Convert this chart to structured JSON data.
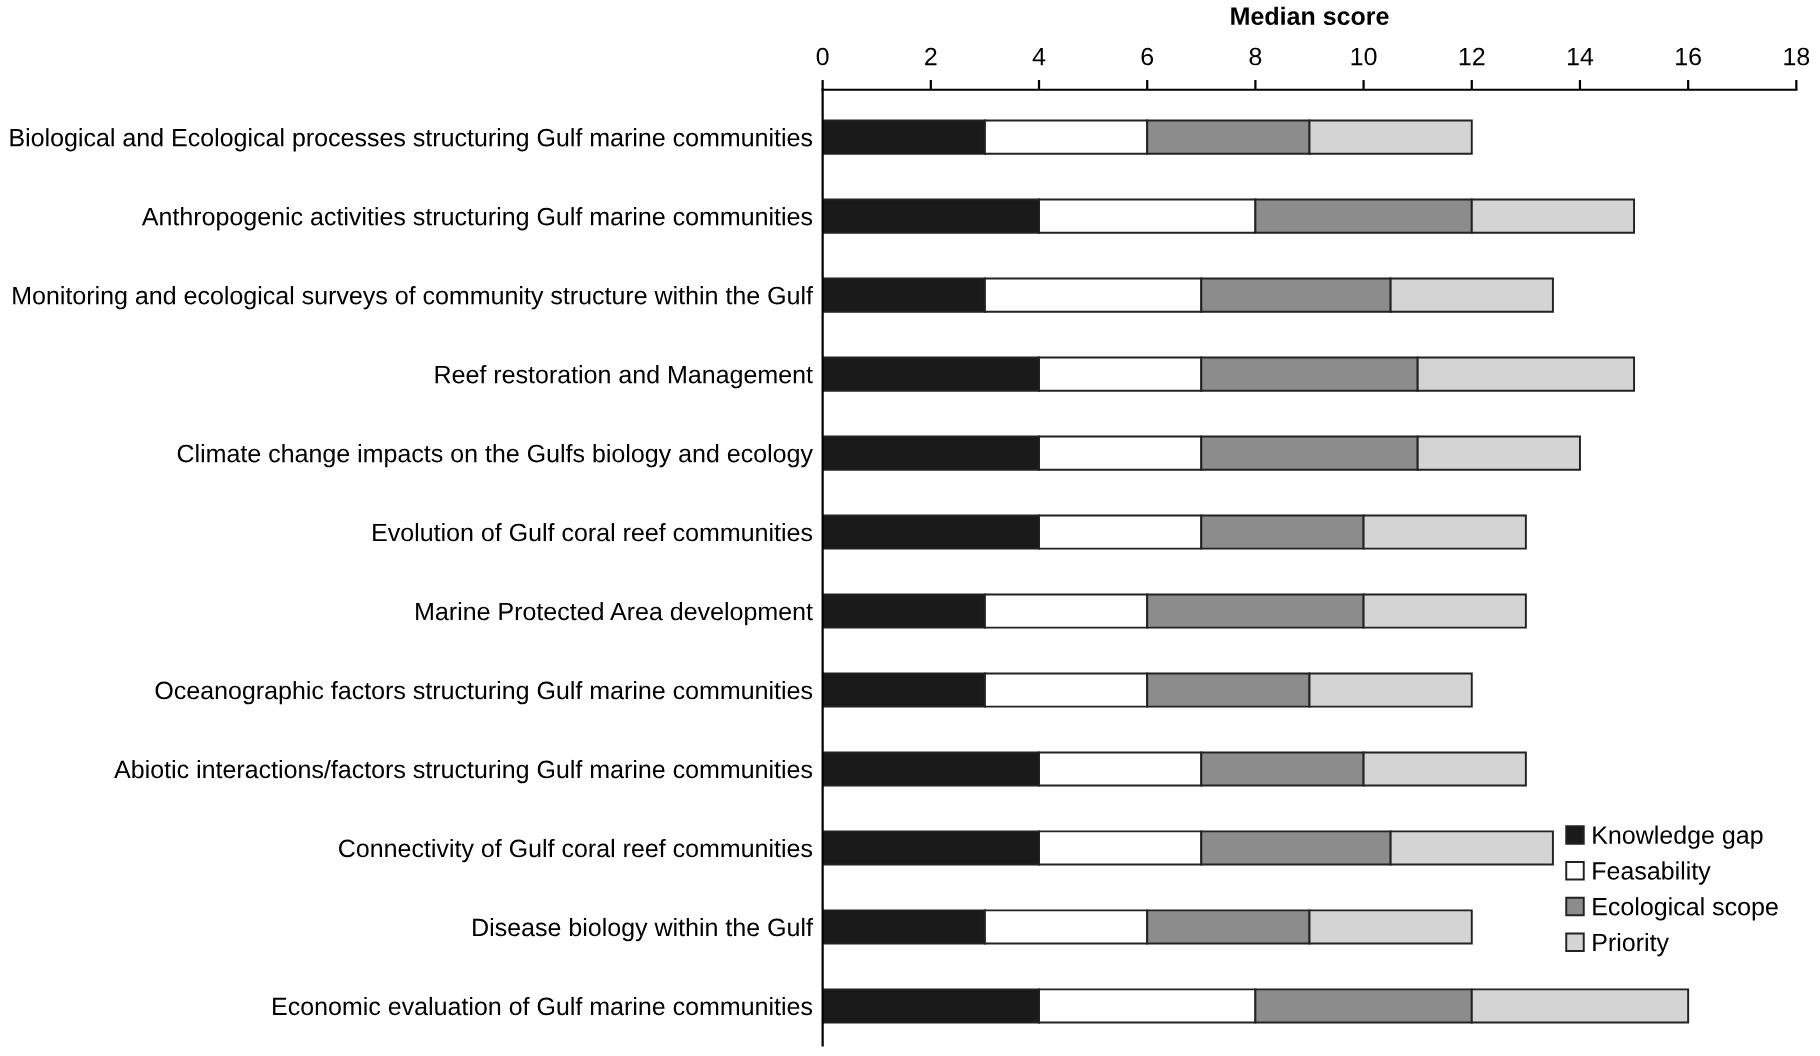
{
  "chart_data": {
    "type": "bar",
    "orientation": "horizontal",
    "stacked": true,
    "xlabel": "Median score",
    "categories": [
      "Biological and Ecological processes structuring Gulf marine communities",
      "Anthropogenic activities structuring Gulf marine communities",
      "Monitoring and ecological surveys of community structure within the Gulf",
      "Reef restoration and Management",
      "Climate change impacts on the Gulfs biology and ecology",
      "Evolution of Gulf coral reef communities",
      "Marine Protected Area development",
      "Oceanographic factors structuring Gulf marine communities",
      "Abiotic interactions/factors structuring Gulf marine communities",
      "Connectivity of Gulf coral reef communities",
      "Disease biology within the Gulf",
      "Economic evaluation of Gulf marine communities"
    ],
    "series": [
      {
        "name": "Knowledge gap",
        "color": "#1a1a1a",
        "values": [
          3,
          4,
          3,
          4,
          4,
          4,
          3,
          3,
          4,
          4,
          3,
          4
        ]
      },
      {
        "name": "Feasability",
        "color": "#ffffff",
        "values": [
          3,
          4,
          4,
          3,
          3,
          3,
          3,
          3,
          3,
          3,
          3,
          4
        ]
      },
      {
        "name": "Ecological scope",
        "color": "#8c8c8c",
        "values": [
          3,
          4,
          3.5,
          4,
          4,
          3,
          4,
          3,
          3,
          3.5,
          3,
          4
        ]
      },
      {
        "name": "Priority",
        "color": "#d4d4d4",
        "values": [
          3,
          3,
          3,
          4,
          3,
          3,
          3,
          3,
          3,
          3,
          3,
          4
        ]
      }
    ],
    "xlim": [
      0,
      18
    ],
    "xticks": [
      0,
      2,
      4,
      6,
      8,
      10,
      12,
      14,
      16,
      18
    ],
    "legend": "bottom right",
    "grid": false
  }
}
